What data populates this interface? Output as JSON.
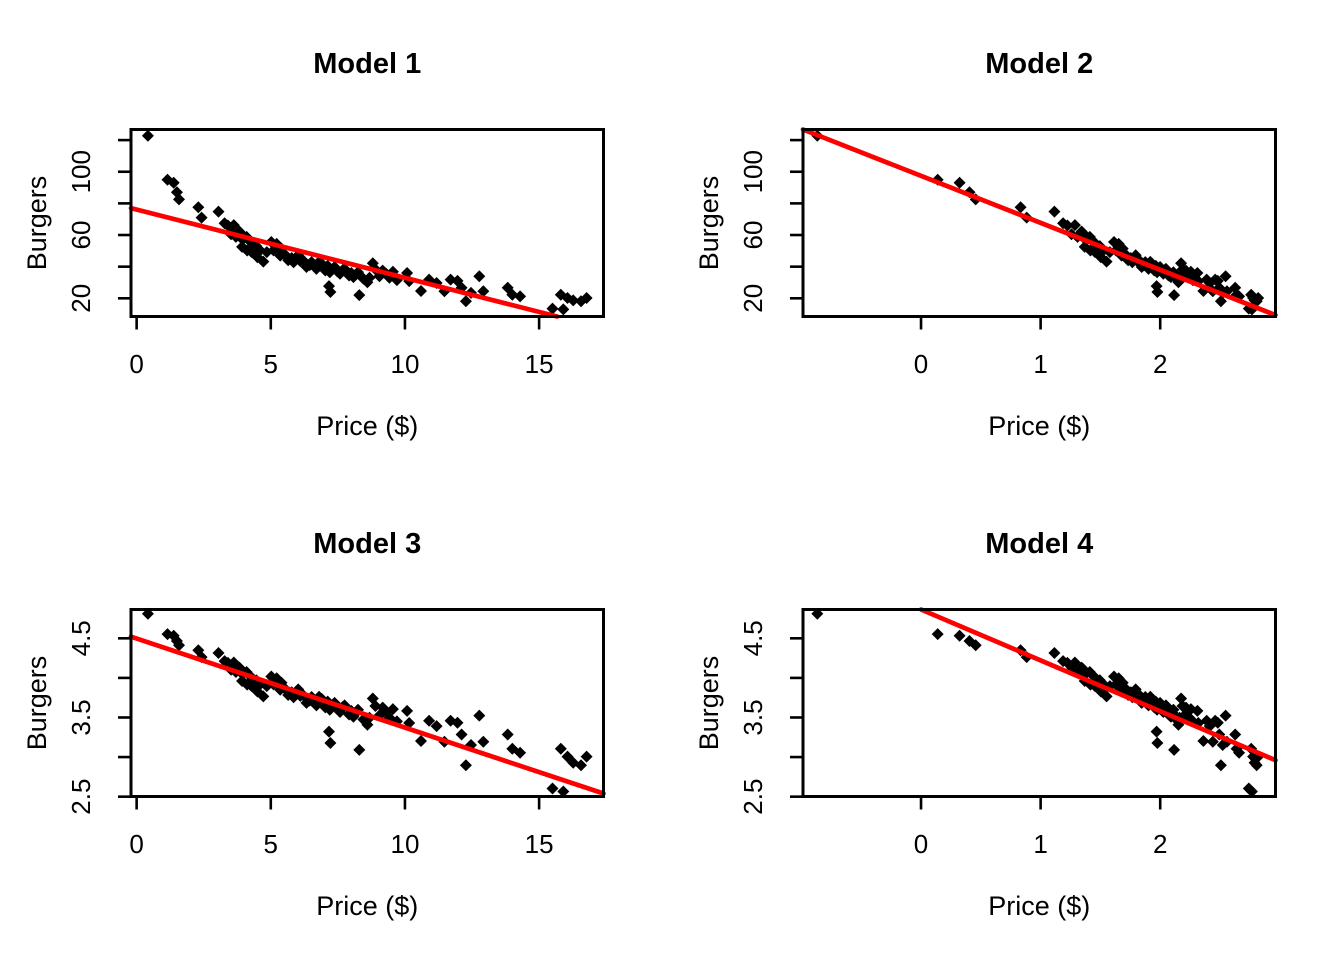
{
  "page": {
    "background": "#ffffff"
  },
  "chart_data": {
    "type": "scatter",
    "description": "2x2 grid of scatter plots of the same burgers-vs-price data under linear/log transforms, each with a red least-squares fit line",
    "point_color": "#000000",
    "fit_line_color": "#ff0000",
    "grid": false,
    "legend": null,
    "shared_points": {
      "price": [
        0.42,
        1.15,
        1.38,
        1.5,
        1.58,
        2.3,
        2.42,
        3.05,
        3.28,
        3.4,
        3.52,
        3.62,
        3.7,
        3.83,
        3.88,
        3.93,
        3.95,
        4.1,
        4.12,
        4.25,
        4.28,
        4.46,
        4.5,
        4.6,
        4.72,
        4.85,
        5.02,
        5.1,
        5.22,
        5.35,
        5.4,
        5.53,
        5.65,
        5.78,
        5.85,
        6.02,
        6.1,
        6.2,
        6.33,
        6.45,
        6.52,
        6.62,
        6.7,
        6.8,
        6.9,
        7.03,
        7.12,
        7.17,
        7.2,
        7.22,
        7.38,
        7.48,
        7.58,
        7.68,
        7.75,
        7.92,
        8.0,
        8.08,
        8.18,
        8.25,
        8.3,
        8.45,
        8.6,
        8.68,
        8.8,
        8.9,
        9.05,
        9.17,
        9.3,
        9.42,
        9.55,
        9.7,
        10.08,
        10.16,
        10.6,
        10.9,
        11.18,
        11.47,
        11.7,
        11.96,
        12.11,
        12.27,
        12.46,
        12.77,
        12.92,
        13.83,
        14.0,
        14.29,
        15.5,
        15.81,
        15.9,
        16.06,
        16.27,
        16.56,
        16.77
      ],
      "burgers": [
        122.7,
        95.0,
        93.0,
        87.0,
        82.5,
        77.5,
        71.0,
        74.8,
        67.5,
        66.0,
        60.5,
        66.3,
        58.8,
        62.2,
        61.0,
        52.5,
        57.2,
        58.8,
        50.2,
        55.5,
        49.3,
        53.0,
        46.0,
        50.3,
        43.2,
        49.2,
        55.6,
        50.3,
        54.4,
        47.0,
        51.4,
        47.6,
        44.0,
        45.5,
        42.8,
        47.2,
        43.5,
        44.0,
        39.8,
        41.0,
        42.9,
        40.2,
        38.6,
        43.0,
        41.8,
        37.6,
        40.5,
        27.7,
        36.5,
        24.0,
        39.8,
        37.0,
        35.5,
        37.8,
        38.6,
        34.4,
        36.0,
        33.4,
        35.2,
        36.5,
        22.0,
        32.3,
        30.2,
        33.0,
        42.1,
        38.3,
        34.0,
        37.5,
        35.5,
        33.0,
        36.8,
        31.5,
        36.0,
        30.9,
        24.6,
        31.8,
        29.7,
        24.4,
        31.8,
        31.0,
        26.7,
        18.1,
        23.4,
        33.9,
        24.4,
        26.7,
        22.3,
        21.2,
        13.5,
        22.3,
        13.0,
        20.2,
        18.7,
        18.1,
        20.2
      ]
    },
    "panels": [
      {
        "id": "model-1",
        "title": "Model 1",
        "xlabel": "Price ($)",
        "ylabel": "Burgers",
        "x_var": "price",
        "y_var": "burgers",
        "x_scale": "linear",
        "y_scale": "linear",
        "xlim": [
          -0.21,
          17.4
        ],
        "ylim": [
          8.5,
          126.7
        ],
        "xticks": [
          {
            "value": 0,
            "label": "0"
          },
          {
            "value": 5,
            "label": "5"
          },
          {
            "value": 10,
            "label": "10"
          },
          {
            "value": 15,
            "label": "15"
          }
        ],
        "yticks": [
          {
            "value": 20,
            "label": "20"
          },
          {
            "value": 40,
            "label": ""
          },
          {
            "value": 60,
            "label": "60"
          },
          {
            "value": 80,
            "label": ""
          },
          {
            "value": 100,
            "label": "100"
          },
          {
            "value": 120,
            "label": ""
          }
        ],
        "fit_line": [
          [
            -0.21,
            77.0
          ],
          [
            15.67,
            8.5
          ]
        ]
      },
      {
        "id": "model-2",
        "title": "Model 2",
        "xlabel": "Price ($)",
        "ylabel": "Burgers",
        "x_var": "price",
        "y_var": "burgers",
        "x_scale": "log",
        "y_scale": "linear",
        "xlim": [
          -0.987,
          2.964
        ],
        "ylim": [
          8.5,
          126.7
        ],
        "xticks": [
          {
            "value": 0,
            "label": "0"
          },
          {
            "value": 1,
            "label": "1"
          },
          {
            "value": 2,
            "label": "2"
          }
        ],
        "yticks": [
          {
            "value": 20,
            "label": "20"
          },
          {
            "value": 40,
            "label": ""
          },
          {
            "value": 60,
            "label": "60"
          },
          {
            "value": 80,
            "label": ""
          },
          {
            "value": 100,
            "label": "100"
          },
          {
            "value": 120,
            "label": ""
          }
        ],
        "fit_line": [
          [
            -0.987,
            126.7
          ],
          [
            2.964,
            9.4
          ]
        ]
      },
      {
        "id": "model-3",
        "title": "Model 3",
        "xlabel": "Price ($)",
        "ylabel": "Burgers",
        "x_var": "price",
        "y_var": "burgers",
        "x_scale": "linear",
        "y_scale": "log",
        "xlim": [
          -0.21,
          17.4
        ],
        "ylim": [
          2.502,
          4.864
        ],
        "xticks": [
          {
            "value": 0,
            "label": "0"
          },
          {
            "value": 5,
            "label": "5"
          },
          {
            "value": 10,
            "label": "10"
          },
          {
            "value": 15,
            "label": "15"
          }
        ],
        "yticks": [
          {
            "value": 2.5,
            "label": "2.5"
          },
          {
            "value": 3.0,
            "label": ""
          },
          {
            "value": 3.5,
            "label": "3.5"
          },
          {
            "value": 4.0,
            "label": ""
          },
          {
            "value": 4.5,
            "label": "4.5"
          }
        ],
        "fit_line": [
          [
            -0.21,
            4.52
          ],
          [
            17.4,
            2.54
          ]
        ]
      },
      {
        "id": "model-4",
        "title": "Model 4",
        "xlabel": "Price ($)",
        "ylabel": "Burgers",
        "x_var": "price",
        "y_var": "burgers",
        "x_scale": "log",
        "y_scale": "log",
        "xlim": [
          -0.987,
          2.964
        ],
        "ylim": [
          2.502,
          4.864
        ],
        "xticks": [
          {
            "value": 0,
            "label": "0"
          },
          {
            "value": 1,
            "label": "1"
          },
          {
            "value": 2,
            "label": "2"
          }
        ],
        "yticks": [
          {
            "value": 2.5,
            "label": "2.5"
          },
          {
            "value": 3.0,
            "label": ""
          },
          {
            "value": 3.5,
            "label": "3.5"
          },
          {
            "value": 4.0,
            "label": ""
          },
          {
            "value": 4.5,
            "label": "4.5"
          }
        ],
        "fit_line": [
          [
            0.0,
            4.864
          ],
          [
            2.964,
            2.96
          ]
        ]
      }
    ]
  }
}
